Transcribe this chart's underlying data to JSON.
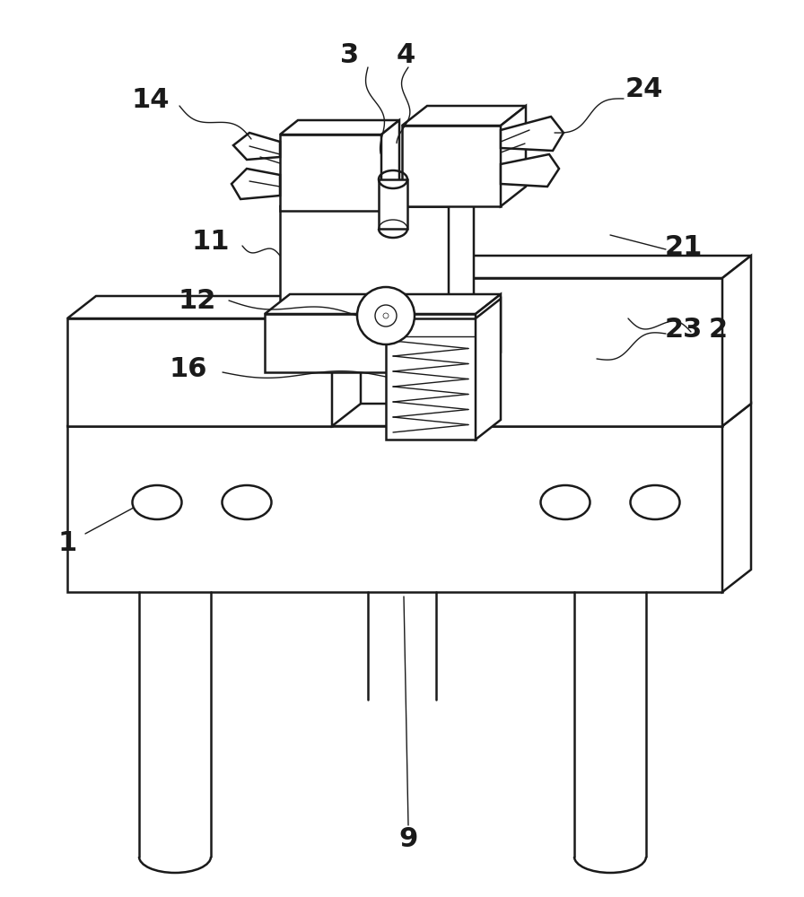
{
  "bg_color": "#ffffff",
  "lc": "#1a1a1a",
  "lw": 1.8,
  "tlw": 1.0,
  "fs": 22,
  "fc": "#ffffff"
}
